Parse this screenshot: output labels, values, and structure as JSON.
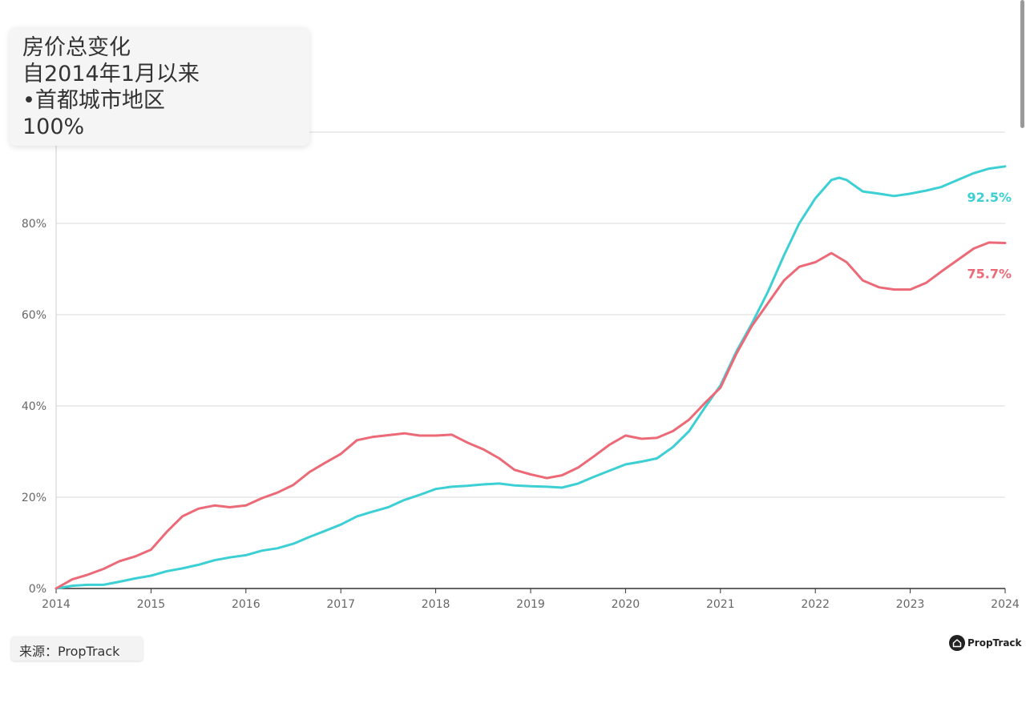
{
  "title_box": {
    "lines": [
      "房价总变化",
      "自2014年1月以来",
      "•首都城市地区",
      "100%"
    ]
  },
  "source": "来源：PropTrack",
  "brand": {
    "name": "PropTrack",
    "icon": "house-icon"
  },
  "chart_data": {
    "type": "line",
    "x_ticks": [
      "2014",
      "2015",
      "2016",
      "2017",
      "2018",
      "2019",
      "2020",
      "2021",
      "2022",
      "2023",
      "2024"
    ],
    "y_ticks": [
      "0%",
      "20%",
      "40%",
      "60%",
      "80%"
    ],
    "ylim": [
      0,
      100
    ],
    "xlim": [
      2014,
      2024
    ],
    "grid": true,
    "series": [
      {
        "color": "#3ccfd4",
        "end_label": "92.5%",
        "x": [
          2014.0,
          2014.17,
          2014.33,
          2014.5,
          2014.67,
          2014.83,
          2015.0,
          2015.17,
          2015.33,
          2015.5,
          2015.67,
          2015.83,
          2016.0,
          2016.17,
          2016.33,
          2016.5,
          2016.67,
          2016.83,
          2017.0,
          2017.17,
          2017.33,
          2017.5,
          2017.67,
          2017.83,
          2018.0,
          2018.17,
          2018.33,
          2018.5,
          2018.67,
          2018.83,
          2019.0,
          2019.17,
          2019.33,
          2019.5,
          2019.67,
          2019.83,
          2020.0,
          2020.17,
          2020.33,
          2020.5,
          2020.67,
          2020.83,
          2021.0,
          2021.17,
          2021.33,
          2021.5,
          2021.67,
          2021.83,
          2022.0,
          2022.17,
          2022.25,
          2022.33,
          2022.5,
          2022.67,
          2022.83,
          2023.0,
          2023.17,
          2023.33,
          2023.5,
          2023.67,
          2023.83,
          2024.0
        ],
        "y": [
          0,
          0.6,
          0.8,
          0.8,
          1.5,
          2.2,
          2.8,
          3.8,
          4.4,
          5.2,
          6.2,
          6.8,
          7.3,
          8.3,
          8.8,
          9.8,
          11.3,
          12.6,
          14.0,
          15.8,
          16.8,
          17.8,
          19.4,
          20.5,
          21.8,
          22.3,
          22.5,
          22.8,
          23.0,
          22.6,
          22.4,
          22.3,
          22.1,
          23.0,
          24.5,
          25.8,
          27.2,
          27.8,
          28.5,
          31.0,
          34.5,
          39.5,
          44.5,
          52.0,
          58.0,
          65.0,
          73.0,
          80.0,
          85.5,
          89.5,
          90.0,
          89.5,
          87.0,
          86.5,
          86.0,
          86.5,
          87.2,
          88.0,
          89.5,
          91.0,
          92.0,
          92.5
        ]
      },
      {
        "color": "#ec6a77",
        "end_label": "75.7%",
        "x": [
          2014.0,
          2014.17,
          2014.33,
          2014.5,
          2014.67,
          2014.83,
          2015.0,
          2015.17,
          2015.33,
          2015.5,
          2015.67,
          2015.83,
          2016.0,
          2016.17,
          2016.33,
          2016.5,
          2016.67,
          2016.83,
          2017.0,
          2017.17,
          2017.33,
          2017.5,
          2017.67,
          2017.83,
          2018.0,
          2018.17,
          2018.33,
          2018.5,
          2018.67,
          2018.83,
          2019.0,
          2019.17,
          2019.33,
          2019.5,
          2019.67,
          2019.83,
          2020.0,
          2020.17,
          2020.33,
          2020.5,
          2020.67,
          2020.83,
          2021.0,
          2021.17,
          2021.33,
          2021.5,
          2021.67,
          2021.83,
          2022.0,
          2022.17,
          2022.33,
          2022.5,
          2022.67,
          2022.83,
          2023.0,
          2023.17,
          2023.33,
          2023.5,
          2023.67,
          2023.83,
          2024.0
        ],
        "y": [
          0,
          2.0,
          3.0,
          4.3,
          6.0,
          7.0,
          8.5,
          12.5,
          15.8,
          17.5,
          18.2,
          17.8,
          18.2,
          19.8,
          21.0,
          22.7,
          25.5,
          27.5,
          29.5,
          32.5,
          33.2,
          33.6,
          34.0,
          33.5,
          33.5,
          33.7,
          32.0,
          30.5,
          28.5,
          26.0,
          25.0,
          24.2,
          24.8,
          26.5,
          29.0,
          31.5,
          33.5,
          32.8,
          33.0,
          34.5,
          37.0,
          40.5,
          44.0,
          51.5,
          57.5,
          62.5,
          67.5,
          70.5,
          71.5,
          73.5,
          71.5,
          67.5,
          66.0,
          65.5,
          65.5,
          67.0,
          69.5,
          72.0,
          74.5,
          75.8,
          75.7
        ]
      }
    ]
  }
}
